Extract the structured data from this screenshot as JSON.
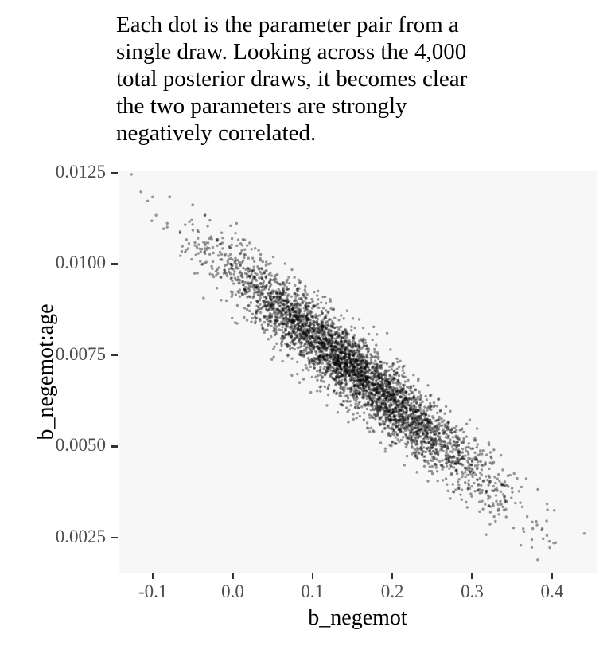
{
  "chart_data": {
    "type": "scatter",
    "title": "Each dot is the parameter pair from a single draw. Looking across the 4,000 total posterior draws, it becomes clear the two parameters are strongly negatively correlated.",
    "title_lines": [
      "Each dot is the parameter pair from a",
      "single draw. Looking across the 4,000",
      "total posterior draws, it becomes clear",
      "the two parameters are strongly",
      "negatively correlated."
    ],
    "xlabel": "b_negemot",
    "ylabel": "b_negemot:age",
    "n_points": 4000,
    "xlim": [
      -0.143,
      0.456
    ],
    "ylim": [
      0.00154,
      0.01254
    ],
    "x_ticks": [
      {
        "value": -0.1,
        "label": "-0.1"
      },
      {
        "value": 0.0,
        "label": "0.0"
      },
      {
        "value": 0.1,
        "label": "0.1"
      },
      {
        "value": 0.2,
        "label": "0.2"
      },
      {
        "value": 0.3,
        "label": "0.3"
      },
      {
        "value": 0.4,
        "label": "0.4"
      }
    ],
    "y_ticks": [
      {
        "value": 0.0025,
        "label": "0.0025"
      },
      {
        "value": 0.005,
        "label": "0.0050"
      },
      {
        "value": 0.0075,
        "label": "0.0075"
      },
      {
        "value": 0.01,
        "label": "0.0100"
      },
      {
        "value": 0.0125,
        "label": "0.0125"
      }
    ],
    "grid": false,
    "legend": false,
    "points_summary": {
      "description": "4000 posterior draws of (b_negemot, b_negemot:age); dense elliptical cloud, strongly negatively correlated",
      "mean": [
        0.152,
        0.0071
      ],
      "sd": [
        0.085,
        0.00162
      ],
      "correlation": -0.95,
      "x_range_approx": [
        -0.12,
        0.43
      ],
      "y_range_approx": [
        0.0021,
        0.0122
      ],
      "seed": 42
    },
    "style": {
      "point_color": "0,0,0",
      "point_alpha": 0.4,
      "point_radius": 1.7,
      "panel_bg": "#F7F7F7",
      "tick_color": "#333333",
      "tick_label_color": "#4D4D4D",
      "axis_title_color": "#000000",
      "title_color": "#000000"
    }
  }
}
